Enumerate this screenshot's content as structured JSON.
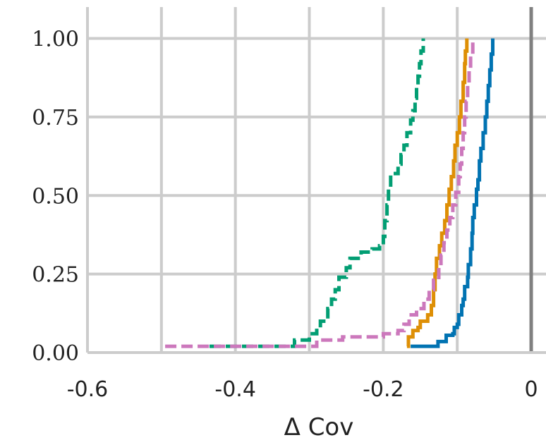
{
  "chart_data": {
    "type": "line",
    "subtype": "step-ecdf",
    "xlabel": "Δ Cov",
    "ylabel": "",
    "xlim": [
      -0.6,
      0.02
    ],
    "ylim": [
      0,
      1.1
    ],
    "x_ticks": [
      -0.6,
      -0.4,
      -0.2,
      0
    ],
    "x_tick_labels": [
      "-0.6",
      "-0.4",
      "-0.2",
      "0"
    ],
    "y_ticks": [
      0,
      0.25,
      0.5,
      0.75,
      1.0
    ],
    "y_tick_labels": [
      "0.00",
      "0.25",
      "0.50",
      "0.75",
      "1.00"
    ],
    "grid": true,
    "legend": "none",
    "reference_line": {
      "x": 0,
      "color": "#808080"
    },
    "series": [
      {
        "color": "#0173b2",
        "style": "solid",
        "points": [
          [
            -0.163,
            0.02
          ],
          [
            -0.13,
            0.02
          ],
          [
            -0.126,
            0.035
          ],
          [
            -0.117,
            0.035
          ],
          [
            -0.115,
            0.055
          ],
          [
            -0.106,
            0.06
          ],
          [
            -0.104,
            0.08
          ],
          [
            -0.1,
            0.09
          ],
          [
            -0.098,
            0.12
          ],
          [
            -0.094,
            0.15
          ],
          [
            -0.092,
            0.17
          ],
          [
            -0.09,
            0.21
          ],
          [
            -0.086,
            0.24
          ],
          [
            -0.085,
            0.28
          ],
          [
            -0.082,
            0.33
          ],
          [
            -0.08,
            0.38
          ],
          [
            -0.079,
            0.43
          ],
          [
            -0.077,
            0.47
          ],
          [
            -0.074,
            0.52
          ],
          [
            -0.072,
            0.55
          ],
          [
            -0.07,
            0.61
          ],
          [
            -0.068,
            0.65
          ],
          [
            -0.065,
            0.7
          ],
          [
            -0.062,
            0.75
          ],
          [
            -0.06,
            0.8
          ],
          [
            -0.058,
            0.85
          ],
          [
            -0.056,
            0.9
          ],
          [
            -0.054,
            0.95
          ],
          [
            -0.052,
            1.0
          ]
        ]
      },
      {
        "color": "#de8f05",
        "style": "solid",
        "points": [
          [
            -0.168,
            0.02
          ],
          [
            -0.166,
            0.05
          ],
          [
            -0.16,
            0.07
          ],
          [
            -0.153,
            0.08
          ],
          [
            -0.15,
            0.1
          ],
          [
            -0.14,
            0.12
          ],
          [
            -0.135,
            0.15
          ],
          [
            -0.132,
            0.2
          ],
          [
            -0.13,
            0.25
          ],
          [
            -0.128,
            0.3
          ],
          [
            -0.124,
            0.34
          ],
          [
            -0.121,
            0.38
          ],
          [
            -0.117,
            0.42
          ],
          [
            -0.114,
            0.47
          ],
          [
            -0.111,
            0.52
          ],
          [
            -0.108,
            0.56
          ],
          [
            -0.105,
            0.61
          ],
          [
            -0.103,
            0.66
          ],
          [
            -0.1,
            0.7
          ],
          [
            -0.097,
            0.75
          ],
          [
            -0.095,
            0.8
          ],
          [
            -0.092,
            0.86
          ],
          [
            -0.09,
            0.92
          ],
          [
            -0.089,
            0.96
          ],
          [
            -0.087,
            1.0
          ]
        ]
      },
      {
        "color": "#029e73",
        "style": "dashed",
        "points": [
          [
            -0.435,
            0.02
          ],
          [
            -0.325,
            0.02
          ],
          [
            -0.32,
            0.04
          ],
          [
            -0.3,
            0.06
          ],
          [
            -0.29,
            0.08
          ],
          [
            -0.285,
            0.1
          ],
          [
            -0.275,
            0.14
          ],
          [
            -0.27,
            0.17
          ],
          [
            -0.265,
            0.2
          ],
          [
            -0.26,
            0.24
          ],
          [
            -0.25,
            0.27
          ],
          [
            -0.245,
            0.3
          ],
          [
            -0.23,
            0.32
          ],
          [
            -0.215,
            0.33
          ],
          [
            -0.205,
            0.34
          ],
          [
            -0.2,
            0.37
          ],
          [
            -0.198,
            0.42
          ],
          [
            -0.195,
            0.47
          ],
          [
            -0.193,
            0.52
          ],
          [
            -0.19,
            0.57
          ],
          [
            -0.18,
            0.6
          ],
          [
            -0.176,
            0.63
          ],
          [
            -0.172,
            0.66
          ],
          [
            -0.168,
            0.7
          ],
          [
            -0.163,
            0.74
          ],
          [
            -0.16,
            0.77
          ],
          [
            -0.157,
            0.81
          ],
          [
            -0.155,
            0.85
          ],
          [
            -0.153,
            0.88
          ],
          [
            -0.151,
            0.92
          ],
          [
            -0.149,
            0.96
          ],
          [
            -0.146,
            1.0
          ]
        ]
      },
      {
        "color": "#cc78bc",
        "style": "dashed",
        "points": [
          [
            -0.495,
            0.02
          ],
          [
            -0.3,
            0.02
          ],
          [
            -0.29,
            0.04
          ],
          [
            -0.255,
            0.05
          ],
          [
            -0.2,
            0.06
          ],
          [
            -0.18,
            0.07
          ],
          [
            -0.172,
            0.09
          ],
          [
            -0.165,
            0.12
          ],
          [
            -0.155,
            0.14
          ],
          [
            -0.145,
            0.17
          ],
          [
            -0.138,
            0.2
          ],
          [
            -0.132,
            0.23
          ],
          [
            -0.125,
            0.27
          ],
          [
            -0.122,
            0.31
          ],
          [
            -0.118,
            0.35
          ],
          [
            -0.114,
            0.39
          ],
          [
            -0.11,
            0.43
          ],
          [
            -0.106,
            0.47
          ],
          [
            -0.102,
            0.51
          ],
          [
            -0.098,
            0.56
          ],
          [
            -0.096,
            0.6
          ],
          [
            -0.094,
            0.65
          ],
          [
            -0.092,
            0.7
          ],
          [
            -0.09,
            0.75
          ],
          [
            -0.088,
            0.8
          ],
          [
            -0.086,
            0.85
          ],
          [
            -0.084,
            0.9
          ],
          [
            -0.082,
            0.95
          ],
          [
            -0.079,
            1.0
          ]
        ]
      }
    ]
  }
}
